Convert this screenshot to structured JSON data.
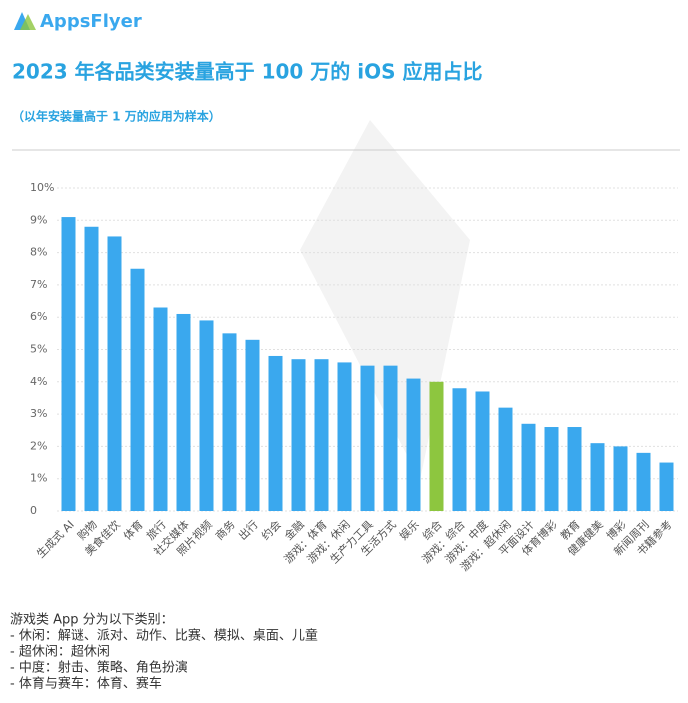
{
  "brand": "AppsFlyer",
  "chart_data": {
    "type": "bar",
    "title": "2023 年各品类安装量高于 100 万的 iOS 应用占比",
    "subtitle": "（以年安装量高于 1 万的应用为样本）",
    "categories": [
      "生成式 AI",
      "购物",
      "美食佳饮",
      "体育",
      "旅行",
      "社交媒体",
      "照片视频",
      "商务",
      "出行",
      "约会",
      "金融",
      "游戏：体育",
      "游戏：休闲",
      "生产力工具",
      "生活方式",
      "娱乐",
      "综合",
      "游戏：综合",
      "游戏：中度",
      "游戏：超休闲",
      "平面设计",
      "体育博彩",
      "教育",
      "健康健美",
      "博彩",
      "新闻周刊",
      "书籍参考"
    ],
    "values": [
      9.1,
      8.8,
      8.5,
      7.5,
      6.3,
      6.1,
      5.9,
      5.5,
      5.3,
      4.8,
      4.7,
      4.7,
      4.6,
      4.5,
      4.5,
      4.1,
      4.0,
      3.8,
      3.7,
      3.2,
      2.7,
      2.6,
      2.6,
      2.1,
      2.0,
      1.8,
      1.5
    ],
    "colors": [
      "#3aa8ee",
      "#3aa8ee",
      "#3aa8ee",
      "#3aa8ee",
      "#3aa8ee",
      "#3aa8ee",
      "#3aa8ee",
      "#3aa8ee",
      "#3aa8ee",
      "#3aa8ee",
      "#3aa8ee",
      "#3aa8ee",
      "#3aa8ee",
      "#3aa8ee",
      "#3aa8ee",
      "#3aa8ee",
      "#8dc63f",
      "#3aa8ee",
      "#3aa8ee",
      "#3aa8ee",
      "#3aa8ee",
      "#3aa8ee",
      "#3aa8ee",
      "#3aa8ee",
      "#3aa8ee",
      "#3aa8ee",
      "#3aa8ee"
    ],
    "ylim": [
      0,
      10
    ],
    "yticks": [
      0,
      {
        "value": 1,
        "label": "1%"
      },
      {
        "value": 2,
        "label": "2%"
      },
      {
        "value": 3,
        "label": "3%"
      },
      {
        "value": 4,
        "label": "4%"
      },
      {
        "value": 5,
        "label": "5%"
      },
      {
        "value": 6,
        "label": "6%"
      },
      {
        "value": 7,
        "label": "7%"
      },
      {
        "value": 8,
        "label": "8%"
      },
      {
        "value": 9,
        "label": "9%"
      },
      {
        "value": 10,
        "label": "10%"
      }
    ],
    "grid": true,
    "notes": [
      "游戏类 App 分为以下类别：",
      "- 休闲：解谜、派对、动作、比赛、模拟、桌面、儿童",
      "- 超休闲：超休闲",
      "- 中度：射击、策略、角色扮演",
      "- 体育与赛车：体育、赛车"
    ]
  }
}
